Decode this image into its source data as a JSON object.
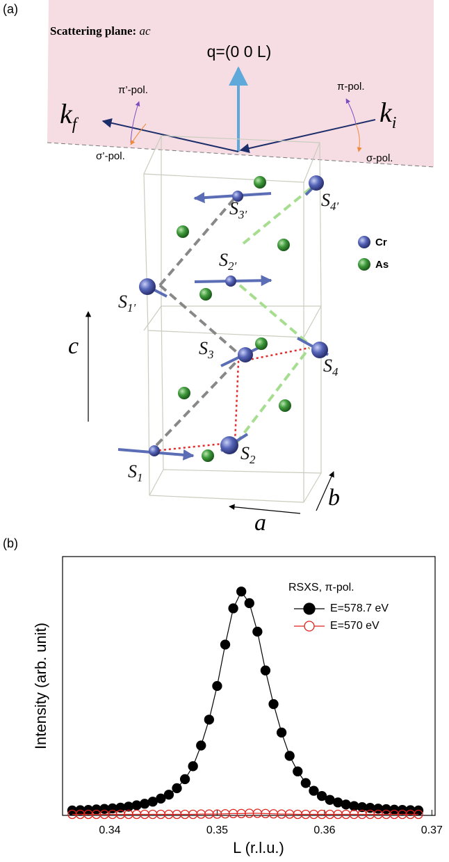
{
  "panel_a": {
    "panel_label": "(a)",
    "plane": {
      "label": "Scattering plane:",
      "var": "ac"
    },
    "q": "q=(0 0 L)",
    "kf": {
      "base": "k",
      "sub": "f"
    },
    "ki": {
      "base": "k",
      "sub": "i"
    },
    "pi_prime": "π’-pol.",
    "sigma_prime": "σ’-pol.",
    "pi": "π-pol.",
    "sigma": "σ-pol.",
    "spins": [
      {
        "base": "S",
        "sub": "3′"
      },
      {
        "base": "S",
        "sub": "4′"
      },
      {
        "base": "S",
        "sub": "2′"
      },
      {
        "base": "S",
        "sub": "1′"
      },
      {
        "base": "S",
        "sub": "3"
      },
      {
        "base": "S",
        "sub": "4"
      },
      {
        "base": "S",
        "sub": "1"
      },
      {
        "base": "S",
        "sub": "2"
      }
    ],
    "legend": [
      "Cr",
      "As"
    ],
    "axes": [
      "c",
      "a",
      "b"
    ]
  },
  "chart_data": {
    "type": "scatter",
    "panel_label": "(b)",
    "ylabel": "Intensity (arb. unit)",
    "xlabel": "L (r.l.u.)",
    "legend_title": "RSXS, π-pol.",
    "x": [
      0.3365,
      0.33725,
      0.338,
      0.33875,
      0.3395,
      0.34025,
      0.341,
      0.34175,
      0.3425,
      0.34325,
      0.344,
      0.34475,
      0.3455,
      0.34625,
      0.347,
      0.34775,
      0.3485,
      0.34925,
      0.35,
      0.35075,
      0.3515,
      0.35225,
      0.353,
      0.35375,
      0.3545,
      0.35525,
      0.356,
      0.35675,
      0.3575,
      0.35825,
      0.359,
      0.35975,
      0.3605,
      0.36125,
      0.362,
      0.36275,
      0.3635,
      0.36425,
      0.365,
      0.36575,
      0.3665,
      0.36725,
      0.368,
      0.36875
    ],
    "series": [
      {
        "name": "E=578.7 eV",
        "color": "#000000",
        "filled": true,
        "values": [
          0.019,
          0.02,
          0.021,
          0.023,
          0.025,
          0.027,
          0.03,
          0.034,
          0.039,
          0.045,
          0.053,
          0.065,
          0.08,
          0.105,
          0.14,
          0.19,
          0.27,
          0.37,
          0.5,
          0.66,
          0.8,
          0.865,
          0.82,
          0.71,
          0.56,
          0.43,
          0.32,
          0.23,
          0.17,
          0.125,
          0.095,
          0.075,
          0.06,
          0.05,
          0.042,
          0.036,
          0.032,
          0.029,
          0.026,
          0.024,
          0.022,
          0.021,
          0.02,
          0.019
        ]
      },
      {
        "name": "E=570 eV",
        "color": "#e0201b",
        "filled": false,
        "values": [
          0.004,
          0.004,
          0.004,
          0.004,
          0.004,
          0.004,
          0.004,
          0.004,
          0.004,
          0.004,
          0.004,
          0.004,
          0.004,
          0.004,
          0.004,
          0.004,
          0.005,
          0.005,
          0.005,
          0.006,
          0.007,
          0.007,
          0.008,
          0.008,
          0.007,
          0.006,
          0.005,
          0.005,
          0.004,
          0.004,
          0.004,
          0.004,
          0.004,
          0.004,
          0.004,
          0.004,
          0.004,
          0.004,
          0.004,
          0.004,
          0.004,
          0.004,
          0.004,
          0.004
        ]
      }
    ],
    "xlim": [
      0.3356,
      0.3703
    ],
    "xticks": [
      0.34,
      0.35,
      0.36,
      0.37
    ],
    "ylim": [
      0,
      1
    ]
  }
}
